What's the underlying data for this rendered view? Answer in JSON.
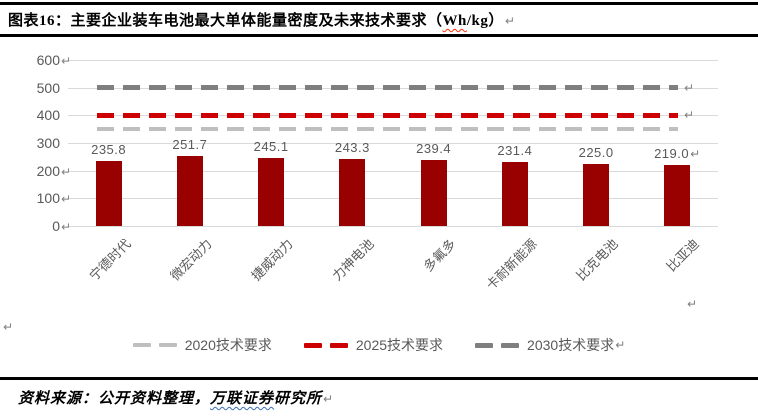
{
  "title": {
    "pre": "图表16：主要企业装车电池最大单体能量密度及未来技术要求（",
    "wavy": "Wh",
    "post": "/kg）"
  },
  "marks": {
    "pilcrow": "↵"
  },
  "chart_data": {
    "type": "bar",
    "title": "主要企业装车电池最大单体能量密度及未来技术要求",
    "unit": "Wh/kg",
    "categories": [
      "宁德时代",
      "微宏动力",
      "捷威动力",
      "力神电池",
      "多氟多",
      "卡耐新能源",
      "比克电池",
      "比亚迪"
    ],
    "values": [
      235.8,
      251.7,
      245.1,
      243.3,
      239.4,
      231.4,
      225.0,
      219.0
    ],
    "value_labels": [
      "235.8",
      "251.7",
      "245.1",
      "243.3",
      "239.4",
      "231.4",
      "225.0",
      "219.0"
    ],
    "last_value_has_mark": true,
    "bar_color": "#990000",
    "grid_color": "#d9d9d9",
    "tick_color": "#595959",
    "ylim": [
      0,
      600
    ],
    "yticks": [
      {
        "label": "600",
        "mark": true
      },
      {
        "label": "500",
        "mark": false
      },
      {
        "label": "400",
        "mark": false
      },
      {
        "label": "300",
        "mark": false
      },
      {
        "label": "200",
        "mark": true
      },
      {
        "label": "100",
        "mark": true
      },
      {
        "label": "0",
        "mark": true
      }
    ],
    "grid": true,
    "legend_position": "bottom",
    "lines": [
      {
        "name": "2020技术要求",
        "num": "2020",
        "suffix": "技术要求",
        "value": 350,
        "color": "#bfbfbf",
        "thickness": 4,
        "end_mark": false,
        "legend_mark": false
      },
      {
        "name": "2025技术要求",
        "num": "2025",
        "suffix": "技术要求",
        "value": 400,
        "color": "#cc0000",
        "thickness": 5,
        "end_mark": true,
        "legend_mark": false
      },
      {
        "name": "2030技术要求",
        "num": "2030",
        "suffix": "技术要求",
        "value": 500,
        "color": "#7f7f7f",
        "thickness": 5,
        "end_mark": true,
        "legend_mark": true
      }
    ]
  },
  "source": {
    "pre": "资料来源：公开资料整理，",
    "wavy": "万联证券",
    "post": "研究所"
  }
}
